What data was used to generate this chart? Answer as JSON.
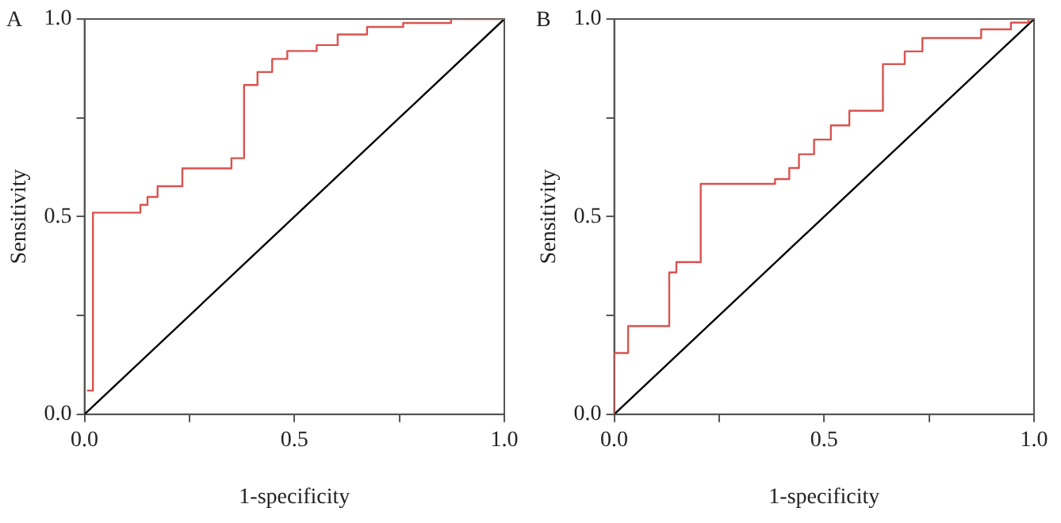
{
  "chart_data": [
    {
      "type": "step",
      "title": "A",
      "xlabel": "1-specificity",
      "ylabel": "Sensitivity",
      "xlim": [
        0,
        1
      ],
      "ylim": [
        0,
        1
      ],
      "xticks": [
        {
          "value": 0,
          "label": "0.0"
        },
        {
          "value": 0.25,
          "label": null
        },
        {
          "value": 0.5,
          "label": "0.5"
        },
        {
          "value": 0.75,
          "label": null
        },
        {
          "value": 1,
          "label": "1.0"
        }
      ],
      "yticks": [
        {
          "value": 0,
          "label": "0.0"
        },
        {
          "value": 0.25,
          "label": null
        },
        {
          "value": 0.5,
          "label": "0.5"
        },
        {
          "value": 0.75,
          "label": null
        },
        {
          "value": 1,
          "label": "1.0"
        }
      ],
      "grid": false,
      "legend": false,
      "marker": "none",
      "series": [
        {
          "type": "step",
          "color": "#d9534f",
          "x": [
            0.006,
            0.02,
            0.133,
            0.15,
            0.174,
            0.233,
            0.35,
            0.38,
            0.412,
            0.447,
            0.483,
            0.553,
            0.603,
            0.673,
            0.759,
            0.873,
            1
          ],
          "values": [
            0.06,
            0.51,
            0.53,
            0.55,
            0.577,
            0.622,
            0.648,
            0.833,
            0.866,
            0.899,
            0.919,
            0.934,
            0.961,
            0.98,
            0.99,
            1,
            1
          ]
        },
        {
          "type": "line",
          "color": "#000000",
          "x": [
            0,
            1
          ],
          "values": [
            0,
            1
          ]
        }
      ]
    },
    {
      "type": "step",
      "title": "B",
      "xlabel": "1-specificity",
      "ylabel": "Sensitivity",
      "xlim": [
        0,
        1
      ],
      "ylim": [
        0,
        1
      ],
      "xticks": [
        {
          "value": 0,
          "label": "0.0"
        },
        {
          "value": 0.25,
          "label": null
        },
        {
          "value": 0.5,
          "label": "0.5"
        },
        {
          "value": 0.75,
          "label": null
        },
        {
          "value": 1,
          "label": "1.0"
        }
      ],
      "yticks": [
        {
          "value": 0,
          "label": "0.0"
        },
        {
          "value": 0.25,
          "label": null
        },
        {
          "value": 0.5,
          "label": "0.5"
        },
        {
          "value": 0.75,
          "label": null
        },
        {
          "value": 1,
          "label": "1.0"
        }
      ],
      "grid": false,
      "legend": false,
      "marker": "none",
      "series": [
        {
          "type": "step",
          "color": "#d9534f",
          "x": [
            0,
            0,
            0.033,
            0.131,
            0.148,
            0.206,
            0.383,
            0.417,
            0.44,
            0.476,
            0.516,
            0.56,
            0.64,
            0.692,
            0.734,
            0.874,
            0.945,
            0.987,
            1
          ],
          "values": [
            0,
            0.155,
            0.223,
            0.359,
            0.385,
            0.583,
            0.595,
            0.623,
            0.658,
            0.695,
            0.731,
            0.768,
            0.886,
            0.918,
            0.952,
            0.974,
            0.991,
            1,
            1
          ]
        },
        {
          "type": "line",
          "color": "#000000",
          "x": [
            0,
            1
          ],
          "values": [
            0,
            1
          ]
        }
      ]
    }
  ]
}
